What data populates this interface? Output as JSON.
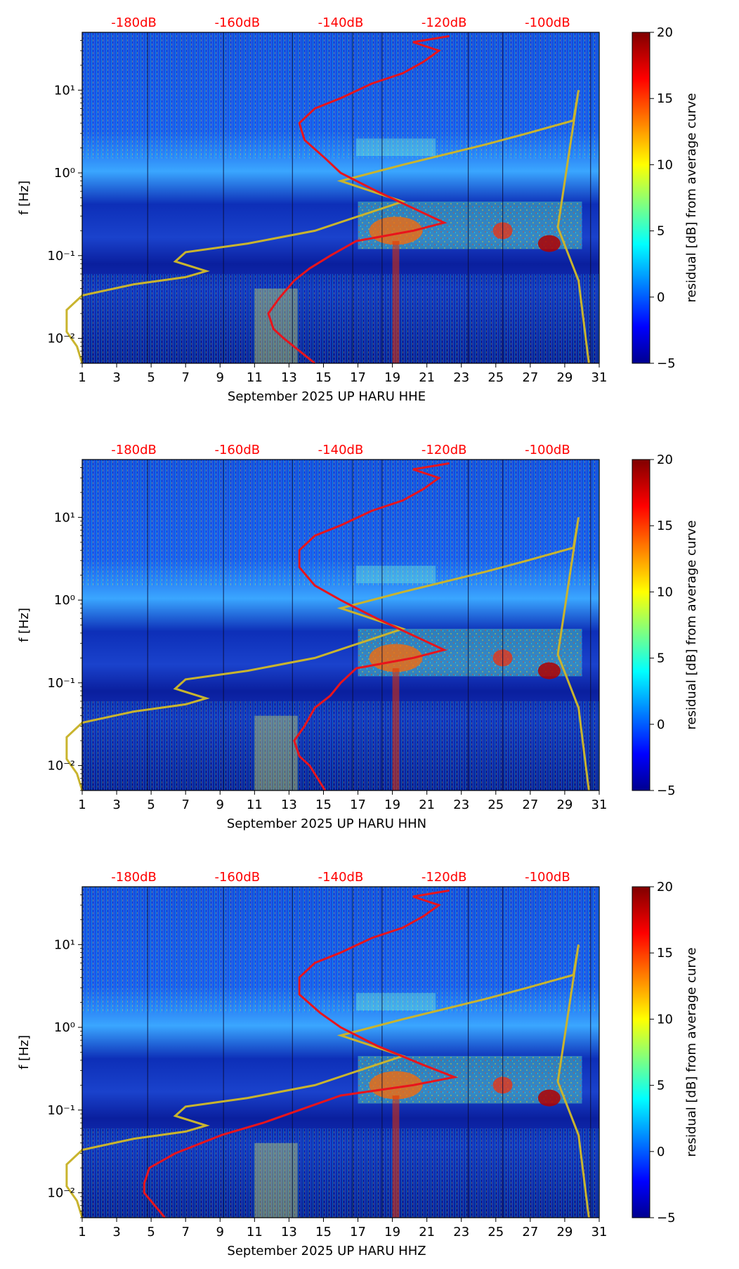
{
  "colorbar": {
    "label": "residual [dB] from average curve",
    "ticks": [
      "20",
      "15",
      "10",
      "5",
      "0",
      "−5"
    ],
    "range": [
      -5,
      20
    ],
    "colormap": [
      "#00008f",
      "#0000ff",
      "#00ffff",
      "#ffff00",
      "#ff0000",
      "#800000"
    ]
  },
  "top_axis": {
    "labels": [
      "-180dB",
      "-160dB",
      "-140dB",
      "-120dB",
      "-100dB"
    ],
    "color": "#ff0000"
  },
  "chart_data": [
    {
      "type": "heatmap",
      "xlabel": "September 2025 UP HARU  HHE",
      "ylabel": "f [Hz]",
      "x_ticks": [
        "1",
        "3",
        "5",
        "7",
        "9",
        "11",
        "13",
        "15",
        "17",
        "19",
        "21",
        "23",
        "25",
        "27",
        "29",
        "31"
      ],
      "y_ticks": [
        "10⁻²",
        "10⁻¹",
        "10⁰",
        "10¹"
      ],
      "xlim": [
        1,
        31
      ],
      "ylim": [
        0.005,
        50
      ],
      "yscale": "log",
      "red_curve": {
        "db": [
          -145,
          -151,
          -153,
          -154,
          -152,
          -149,
          -146,
          -142,
          -137,
          -126,
          -120,
          -125,
          -133,
          -140,
          -143,
          -147,
          -148,
          -145,
          -140,
          -134,
          -128,
          -124,
          -121,
          -126,
          -119
        ],
        "f": [
          0.005,
          0.01,
          0.013,
          0.02,
          0.03,
          0.05,
          0.07,
          0.1,
          0.15,
          0.2,
          0.25,
          0.35,
          0.6,
          1.0,
          1.5,
          2.5,
          4,
          6,
          8,
          12,
          16,
          22,
          30,
          38,
          45
        ]
      },
      "gold_curve": {
        "db": [
          -190,
          -191,
          -193,
          -193,
          -190,
          -180,
          -170,
          -166,
          -172,
          -170,
          -158,
          -145,
          -128,
          -140,
          -128,
          -112,
          -104,
          -95,
          -94,
          -98,
          -94,
          -92
        ],
        "f": [
          0.005,
          0.008,
          0.012,
          0.022,
          0.033,
          0.045,
          0.055,
          0.065,
          0.085,
          0.11,
          0.14,
          0.2,
          0.45,
          0.8,
          1.25,
          2.2,
          3.0,
          4.3,
          10,
          0.22,
          0.05,
          0.005
        ]
      }
    },
    {
      "type": "heatmap",
      "xlabel": "September 2025 UP HARU  HHN",
      "ylabel": "f [Hz]",
      "x_ticks": [
        "1",
        "3",
        "5",
        "7",
        "9",
        "11",
        "13",
        "15",
        "17",
        "19",
        "21",
        "23",
        "25",
        "27",
        "29",
        "31"
      ],
      "y_ticks": [
        "10⁻²",
        "10⁻¹",
        "10⁰",
        "10¹"
      ],
      "xlim": [
        1,
        31
      ],
      "ylim": [
        0.005,
        50
      ],
      "yscale": "log",
      "red_curve": {
        "db": [
          -143,
          -146,
          -148,
          -149,
          -147,
          -145,
          -142,
          -140,
          -137,
          -126,
          -120,
          -125,
          -133,
          -140,
          -145,
          -148,
          -148,
          -145,
          -140,
          -134,
          -128,
          -124,
          -121,
          -126,
          -119
        ],
        "f": [
          0.005,
          0.01,
          0.013,
          0.02,
          0.03,
          0.05,
          0.07,
          0.1,
          0.15,
          0.2,
          0.25,
          0.35,
          0.6,
          1.0,
          1.5,
          2.5,
          4,
          6,
          8,
          12,
          16,
          22,
          30,
          38,
          45
        ]
      },
      "gold_curve": {
        "db": [
          -190,
          -191,
          -193,
          -193,
          -190,
          -180,
          -170,
          -166,
          -172,
          -170,
          -158,
          -145,
          -128,
          -140,
          -128,
          -112,
          -104,
          -95,
          -94,
          -98,
          -94,
          -92
        ],
        "f": [
          0.005,
          0.008,
          0.012,
          0.022,
          0.033,
          0.045,
          0.055,
          0.065,
          0.085,
          0.11,
          0.14,
          0.2,
          0.45,
          0.8,
          1.25,
          2.2,
          3.0,
          4.3,
          10,
          0.22,
          0.05,
          0.005
        ]
      }
    },
    {
      "type": "heatmap",
      "xlabel": "September 2025 UP HARU  HHZ",
      "ylabel": "f [Hz]",
      "x_ticks": [
        "1",
        "3",
        "5",
        "7",
        "9",
        "11",
        "13",
        "15",
        "17",
        "19",
        "21",
        "23",
        "25",
        "27",
        "29",
        "31"
      ],
      "y_ticks": [
        "10⁻²",
        "10⁻¹",
        "10⁰",
        "10¹"
      ],
      "xlim": [
        1,
        31
      ],
      "ylim": [
        0.005,
        50
      ],
      "yscale": "log",
      "red_curve": {
        "db": [
          -174,
          -178,
          -178,
          -177,
          -172,
          -163,
          -155,
          -148,
          -140,
          -126,
          -118,
          -124,
          -133,
          -140,
          -144,
          -148,
          -148,
          -145,
          -140,
          -134,
          -128,
          -124,
          -121,
          -126,
          -119
        ],
        "f": [
          0.005,
          0.01,
          0.013,
          0.02,
          0.03,
          0.05,
          0.07,
          0.1,
          0.15,
          0.2,
          0.25,
          0.35,
          0.6,
          1.0,
          1.5,
          2.5,
          4,
          6,
          8,
          12,
          16,
          22,
          30,
          38,
          45
        ]
      },
      "gold_curve": {
        "db": [
          -190,
          -191,
          -193,
          -193,
          -190,
          -180,
          -170,
          -166,
          -172,
          -170,
          -158,
          -145,
          -128,
          -140,
          -128,
          -112,
          -104,
          -95,
          -94,
          -98,
          -94,
          -92
        ],
        "f": [
          0.005,
          0.008,
          0.012,
          0.022,
          0.033,
          0.045,
          0.055,
          0.065,
          0.085,
          0.11,
          0.14,
          0.2,
          0.45,
          0.8,
          1.25,
          2.2,
          3.0,
          4.3,
          10,
          0.22,
          0.05,
          0.005
        ]
      }
    }
  ]
}
